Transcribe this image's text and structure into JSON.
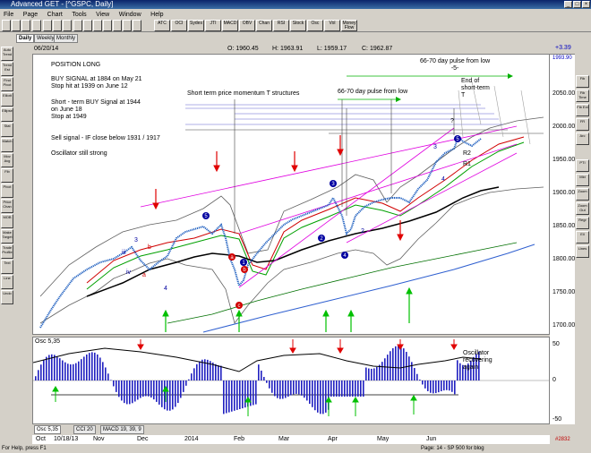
{
  "window": {
    "title": "Advanced GET - [^GSPC, Daily]"
  },
  "menu": [
    "File",
    "Page",
    "Chart",
    "Tools",
    "View",
    "Window",
    "Help"
  ],
  "toolbar_buttons": [
    "ATC",
    "OCI",
    "Sydes",
    "JTI",
    "MACD",
    "OBV",
    "Chan",
    "RSI",
    "Stock",
    "Osc",
    "Vol",
    "Money Flow"
  ],
  "tabs": [
    "Daily",
    "Weekly",
    "Monthly"
  ],
  "active_tab": "Daily",
  "info": {
    "date": "06/20/14",
    "open": "O: 1960.45",
    "high": "H: 1963.91",
    "low": "L: 1959.17",
    "close": "C: 1962.87",
    "change": "+3.39"
  },
  "annotations": {
    "position": "POSITION LONG",
    "buy_signal": "BUY SIGNAL at 1884 on May 21\nStop hit at 1939 on June 12",
    "short_term_buy": "Short - term BUY Signal at 1944\non June 18\nStop at 1949",
    "sell_signal": "Sell signal - IF close below 1931 / 1917",
    "oscillator_strong": "Oscillator still strong",
    "momentum": "Short term price momentum T structures",
    "pulse_mid": "66-70 day pulse from low",
    "pulse_top": "66-70 day pulse from low\n-5-",
    "end_short": "End of\nshort-term\nT",
    "question": "?",
    "r2": "R2",
    "r1": "R1",
    "osc_recovering": "Oscillator\nrecovering\nagain"
  },
  "wave_labels": [
    "iii",
    "3",
    "iv",
    "b",
    "a",
    "4",
    "5",
    "1",
    "2",
    "3",
    "4",
    "5",
    "b",
    "a",
    "c",
    "1",
    "2",
    "3",
    "4",
    "5"
  ],
  "price_axis": {
    "ticks": [
      "2050.00",
      "2000.00",
      "1950.00",
      "1900.00",
      "1850.00",
      "1800.00",
      "1750.00",
      "1700.00"
    ],
    "top_value": "1993.90"
  },
  "osc_axis": {
    "ticks": [
      "50",
      "0",
      "-50"
    ]
  },
  "osc_label": "Osc 5,35",
  "bottom_tabs": [
    "Osc 5,35",
    "CCI 20",
    "MACD 19, 39, 9"
  ],
  "date_axis": [
    "Oct",
    "10/18/13",
    "Nov",
    "Dec",
    "2014",
    "Feb",
    "Mar",
    "Apr",
    "May",
    "Jun"
  ],
  "status": {
    "left": "For Help, press F1",
    "page": "Page: 14 - SP 500 for blog",
    "count": "#2832"
  },
  "left_buttons": [
    "Auto Trend",
    "Trend Est",
    "Find Pivot",
    "Elliott",
    "Ellipse",
    "Stat",
    "Match",
    "Mov Avg",
    "Fib",
    "Pivot",
    "Price Chan",
    "MOB",
    "Make Target",
    "Trade Profile",
    "Text",
    "Line",
    "Undo"
  ],
  "right_buttons": [
    "Fib",
    "Fib Time",
    "Fib Ext",
    "FR",
    "Arc",
    "PTI",
    "Mkt",
    "Zoom",
    "Zoom Out",
    "Regr",
    "Ell",
    "Lines"
  ],
  "colors": {
    "background": "#ffffff",
    "osc_bars": "#2020c0",
    "buy_arrow": "#00c000",
    "sell_arrow": "#e00000",
    "wave_circle": "#0000a0"
  }
}
